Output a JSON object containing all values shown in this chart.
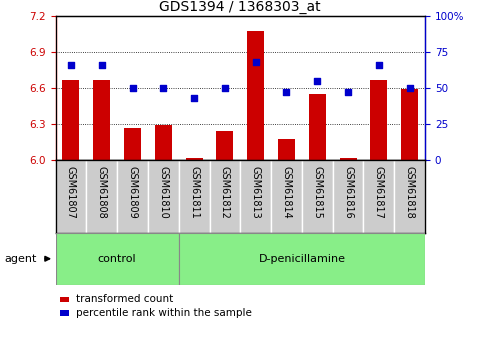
{
  "title": "GDS1394 / 1368303_at",
  "samples": [
    "GSM61807",
    "GSM61808",
    "GSM61809",
    "GSM61810",
    "GSM61811",
    "GSM61812",
    "GSM61813",
    "GSM61814",
    "GSM61815",
    "GSM61816",
    "GSM61817",
    "GSM61818"
  ],
  "red_values": [
    6.67,
    6.67,
    6.27,
    6.29,
    6.02,
    6.24,
    7.07,
    6.18,
    6.55,
    6.02,
    6.67,
    6.59
  ],
  "blue_values": [
    66,
    66,
    50,
    50,
    43,
    50,
    68,
    47,
    55,
    47,
    66,
    50
  ],
  "ymin": 6.0,
  "ymax": 7.2,
  "yticks": [
    6.0,
    6.3,
    6.6,
    6.9,
    7.2
  ],
  "y2min": 0,
  "y2max": 100,
  "y2ticks": [
    0,
    25,
    50,
    75,
    100
  ],
  "red_color": "#cc0000",
  "blue_color": "#0000cc",
  "control_label": "control",
  "treatment_label": "D-penicillamine",
  "agent_label": "agent",
  "legend_red": "transformed count",
  "legend_blue": "percentile rank within the sample",
  "control_count": 4,
  "treatment_count": 8,
  "group_bg_color": "#88ee88",
  "sample_box_color": "#cccccc",
  "bar_width": 0.55,
  "base": 6.0,
  "blue_marker_size": 25,
  "title_fontsize": 10,
  "tick_fontsize": 7.5,
  "label_fontsize": 8,
  "sample_fontsize": 7
}
